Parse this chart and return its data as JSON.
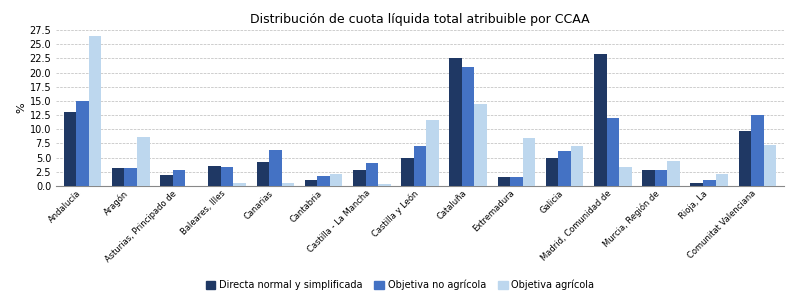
{
  "title": "Distribución de cuota líquida total atribuible por CCAA",
  "ylabel": "%",
  "categories": [
    "Andalucía",
    "Aragón",
    "Asturias, Principado de",
    "Baleares, Illes",
    "Canarias",
    "Cantabria",
    "Castilla - La Mancha",
    "Castilla y León",
    "Cataluña",
    "Extremadura",
    "Galicia",
    "Madrid, Comunidad de",
    "Murcia, Región de",
    "Rioja, La",
    "Comunitat Valenciana"
  ],
  "series": {
    "Directa normal y simplificada": [
      13.0,
      3.1,
      2.0,
      3.5,
      4.2,
      1.0,
      2.8,
      5.0,
      22.6,
      1.6,
      5.0,
      23.3,
      2.8,
      0.6,
      9.7
    ],
    "Objetiva no agrícola": [
      15.0,
      3.2,
      2.9,
      3.4,
      6.3,
      1.7,
      4.1,
      7.0,
      21.0,
      1.6,
      6.2,
      11.9,
      2.8,
      1.1,
      12.5
    ],
    "Objetiva agrícola": [
      26.5,
      8.6,
      0.0,
      0.6,
      0.5,
      2.1,
      0.4,
      11.7,
      14.5,
      8.5,
      7.0,
      3.4,
      4.4,
      2.2,
      7.2
    ]
  },
  "colors": {
    "Directa normal y simplificada": "#1F3864",
    "Objetiva no agrícola": "#4472C4",
    "Objetiva agrícola": "#BDD7EE"
  },
  "ylim": [
    0,
    27.5
  ],
  "yticks": [
    0.0,
    2.5,
    5.0,
    7.5,
    10.0,
    12.5,
    15.0,
    17.5,
    20.0,
    22.5,
    25.0,
    27.5
  ],
  "bar_width": 0.26,
  "background_color": "#FFFFFF",
  "grid_color": "#BBBBBB"
}
